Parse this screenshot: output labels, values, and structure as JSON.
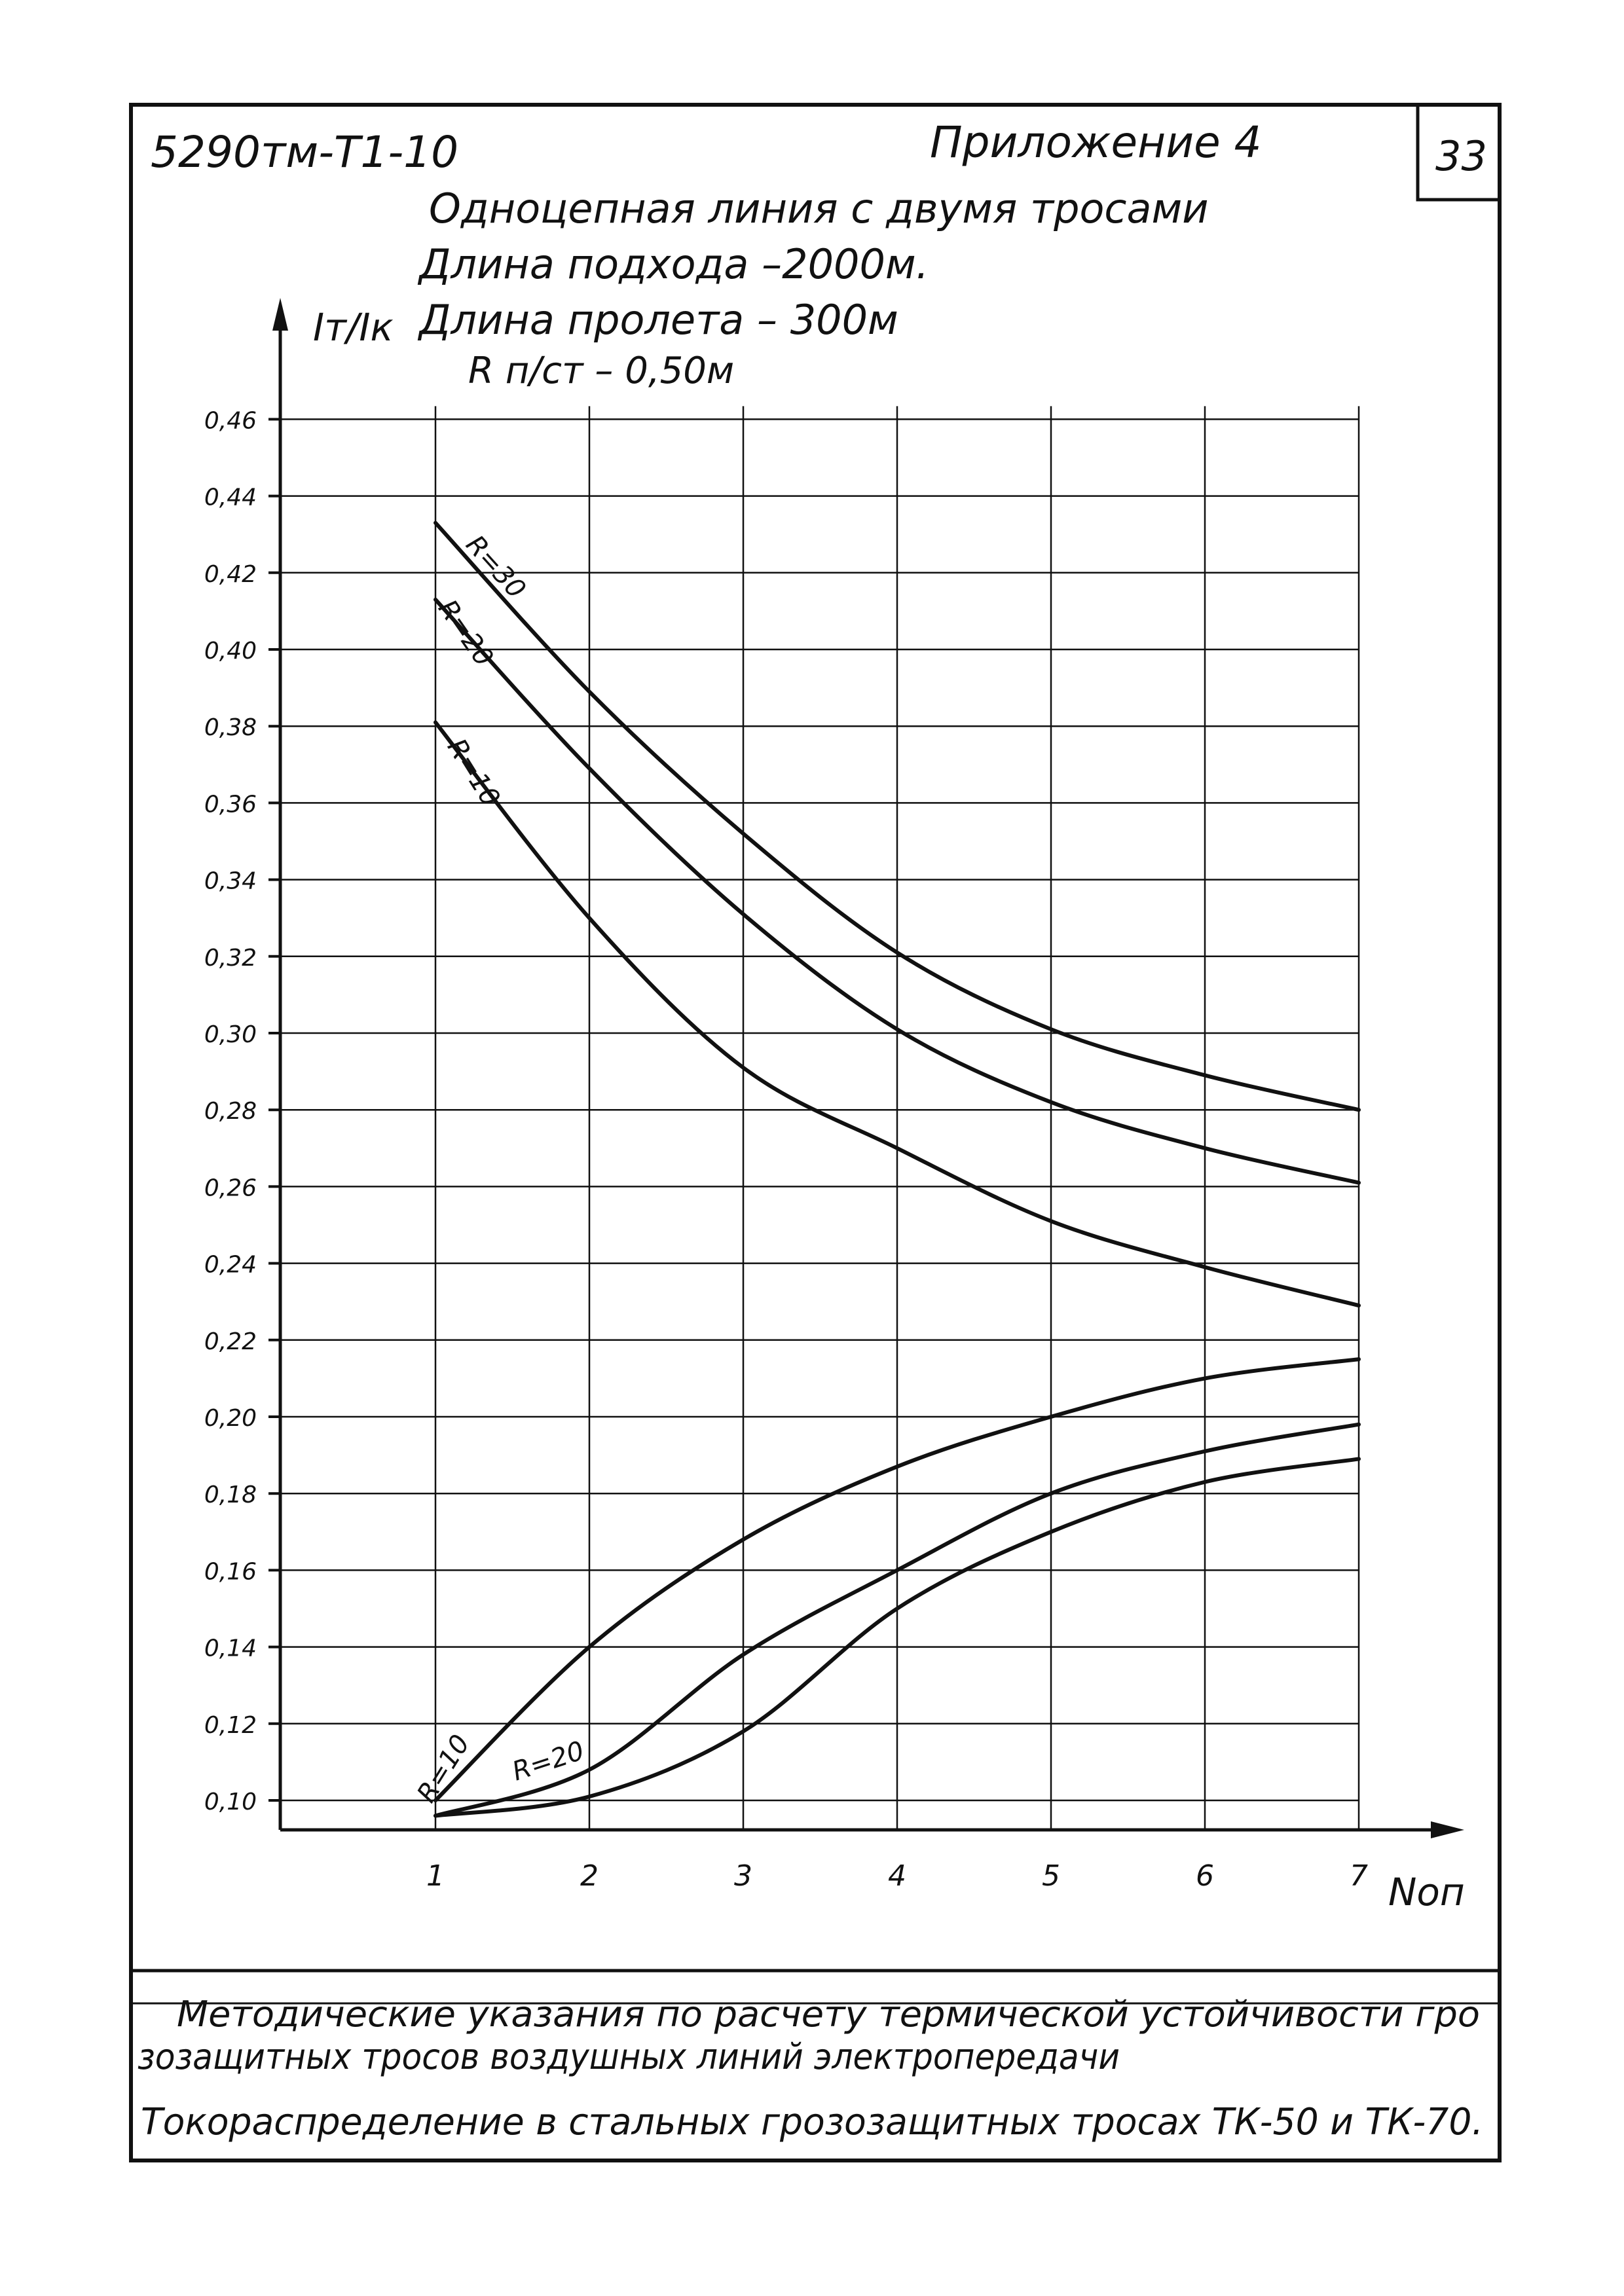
{
  "header": {
    "doc_code": "5290тм-Т1-10",
    "appendix": "Приложение 4",
    "sheet_no": "33"
  },
  "notes": {
    "line1": "Одноцепная линия с двумя тросами",
    "line2": "Длина подхода –2000м.",
    "line3": "Длина пролета – 300м",
    "line4": "R п/ст – 0,50м"
  },
  "footer": {
    "line1": "Методические указания по расчету термической устойчивости гро",
    "line2": "зозащитных тросов воздушных линий электропередачи",
    "line3": "Токораспределение в стальных грозозащитных тросах ТК-50 и ТК-70."
  },
  "chart_data": {
    "type": "line",
    "ylabel": "Iт/Iк",
    "xlabel": "Nоп",
    "x": [
      1,
      2,
      3,
      4,
      5,
      6,
      7
    ],
    "xlim": [
      0,
      7.5
    ],
    "ylim": [
      0.08,
      0.48
    ],
    "x_ticks": [
      "1",
      "2",
      "3",
      "4",
      "5",
      "6",
      "7"
    ],
    "y_ticks": [
      "0,10",
      "0,12",
      "0,14",
      "0,16",
      "0,18",
      "0,20",
      "0,22",
      "0,24",
      "0,26",
      "0,28",
      "0,30",
      "0,32",
      "0,34",
      "0,36",
      "0,38",
      "0,40",
      "0,42",
      "0,44",
      "0,46"
    ],
    "y_tick_values": [
      0.1,
      0.12,
      0.14,
      0.16,
      0.18,
      0.2,
      0.22,
      0.24,
      0.26,
      0.28,
      0.3,
      0.32,
      0.34,
      0.36,
      0.38,
      0.4,
      0.42,
      0.44,
      0.46
    ],
    "grid": true,
    "series": [
      {
        "name": "R=30",
        "values": [
          0.433,
          0.389,
          0.352,
          0.321,
          0.301,
          0.289,
          0.28
        ]
      },
      {
        "name": "R=20",
        "values": [
          0.413,
          0.369,
          0.331,
          0.301,
          0.282,
          0.27,
          0.261
        ]
      },
      {
        "name": "R=10",
        "values": [
          0.381,
          0.33,
          0.291,
          0.27,
          0.251,
          0.239,
          0.229
        ]
      },
      {
        "name": "R=10",
        "values": [
          0.1,
          0.14,
          0.168,
          0.187,
          0.2,
          0.21,
          0.215
        ]
      },
      {
        "name": "R=20",
        "values": [
          0.096,
          0.108,
          0.138,
          0.16,
          0.18,
          0.191,
          0.198
        ]
      },
      {
        "name": "",
        "values": [
          0.096,
          0.101,
          0.118,
          0.15,
          0.17,
          0.183,
          0.189
        ]
      }
    ],
    "line_color": "#111111"
  }
}
